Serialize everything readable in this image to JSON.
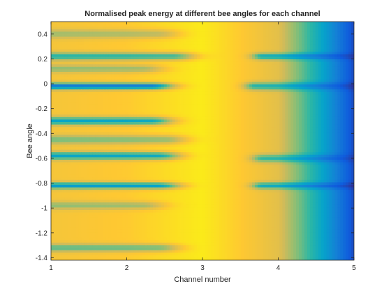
{
  "chart_data": {
    "type": "heatmap",
    "title": "Normalised peak energy at different bee angles for each channel",
    "xlabel": "Channel number",
    "ylabel": "Bee angle",
    "xlim": [
      1,
      5
    ],
    "ylim": [
      -1.42,
      0.5
    ],
    "x_ticks": [
      {
        "value": 1,
        "label": "1"
      },
      {
        "value": 2,
        "label": "2"
      },
      {
        "value": 3,
        "label": "3"
      },
      {
        "value": 4,
        "label": "4"
      },
      {
        "value": 5,
        "label": "5"
      }
    ],
    "y_ticks": [
      {
        "value": 0.4,
        "label": "0.4"
      },
      {
        "value": 0.2,
        "label": "0.2"
      },
      {
        "value": 0,
        "label": "0"
      },
      {
        "value": -0.2,
        "label": "-0.2"
      },
      {
        "value": -0.4,
        "label": "-0.4"
      },
      {
        "value": -0.6,
        "label": "-0.6"
      },
      {
        "value": -0.8,
        "label": "-0.8"
      },
      {
        "value": -1,
        "label": "-1"
      },
      {
        "value": -1.2,
        "label": "-1.2"
      },
      {
        "value": -1.4,
        "label": "-1.4"
      }
    ],
    "colormap": "parula",
    "colormap_stops": [
      "#352a87",
      "#0f5cdd",
      "#1481d6",
      "#06a4ca",
      "#2eb7a4",
      "#87bf77",
      "#d1bb59",
      "#fec832",
      "#f9fb0e"
    ],
    "channels": [
      1,
      2,
      3,
      4,
      5
    ],
    "base_level": [
      0.85,
      0.88,
      0.96,
      0.8,
      0.08
    ],
    "troughs": [
      {
        "angle": 0.4,
        "depth": 0.22,
        "spread": 0.035,
        "channel_range": [
          1,
          2.4
        ]
      },
      {
        "angle": 0.22,
        "depth": 0.45,
        "spread": 0.03,
        "channel_range": [
          1,
          2.6
        ]
      },
      {
        "angle": 0.22,
        "depth": 0.5,
        "spread": 0.025,
        "channel_range": [
          3.8,
          4.8
        ]
      },
      {
        "angle": 0.12,
        "depth": 0.25,
        "spread": 0.03,
        "channel_range": [
          1,
          2.2
        ]
      },
      {
        "angle": -0.02,
        "depth": 0.75,
        "spread": 0.025,
        "channel_range": [
          1,
          2.3
        ]
      },
      {
        "angle": -0.02,
        "depth": 0.45,
        "spread": 0.03,
        "channel_range": [
          3.7,
          4.9
        ]
      },
      {
        "angle": -0.3,
        "depth": 0.55,
        "spread": 0.03,
        "channel_range": [
          1,
          2.3
        ]
      },
      {
        "angle": -0.45,
        "depth": 0.3,
        "spread": 0.035,
        "channel_range": [
          1,
          2.5
        ]
      },
      {
        "angle": -0.58,
        "depth": 0.55,
        "spread": 0.03,
        "channel_range": [
          1,
          2.4
        ]
      },
      {
        "angle": -0.6,
        "depth": 0.4,
        "spread": 0.03,
        "channel_range": [
          3.8,
          4.8
        ]
      },
      {
        "angle": -0.82,
        "depth": 0.6,
        "spread": 0.025,
        "channel_range": [
          1,
          2.4
        ]
      },
      {
        "angle": -0.82,
        "depth": 0.5,
        "spread": 0.025,
        "channel_range": [
          3.8,
          4.9
        ]
      },
      {
        "angle": -0.98,
        "depth": 0.25,
        "spread": 0.03,
        "channel_range": [
          1,
          2.2
        ]
      },
      {
        "angle": -1.32,
        "depth": 0.35,
        "spread": 0.03,
        "channel_range": [
          1,
          2.4
        ]
      }
    ]
  }
}
